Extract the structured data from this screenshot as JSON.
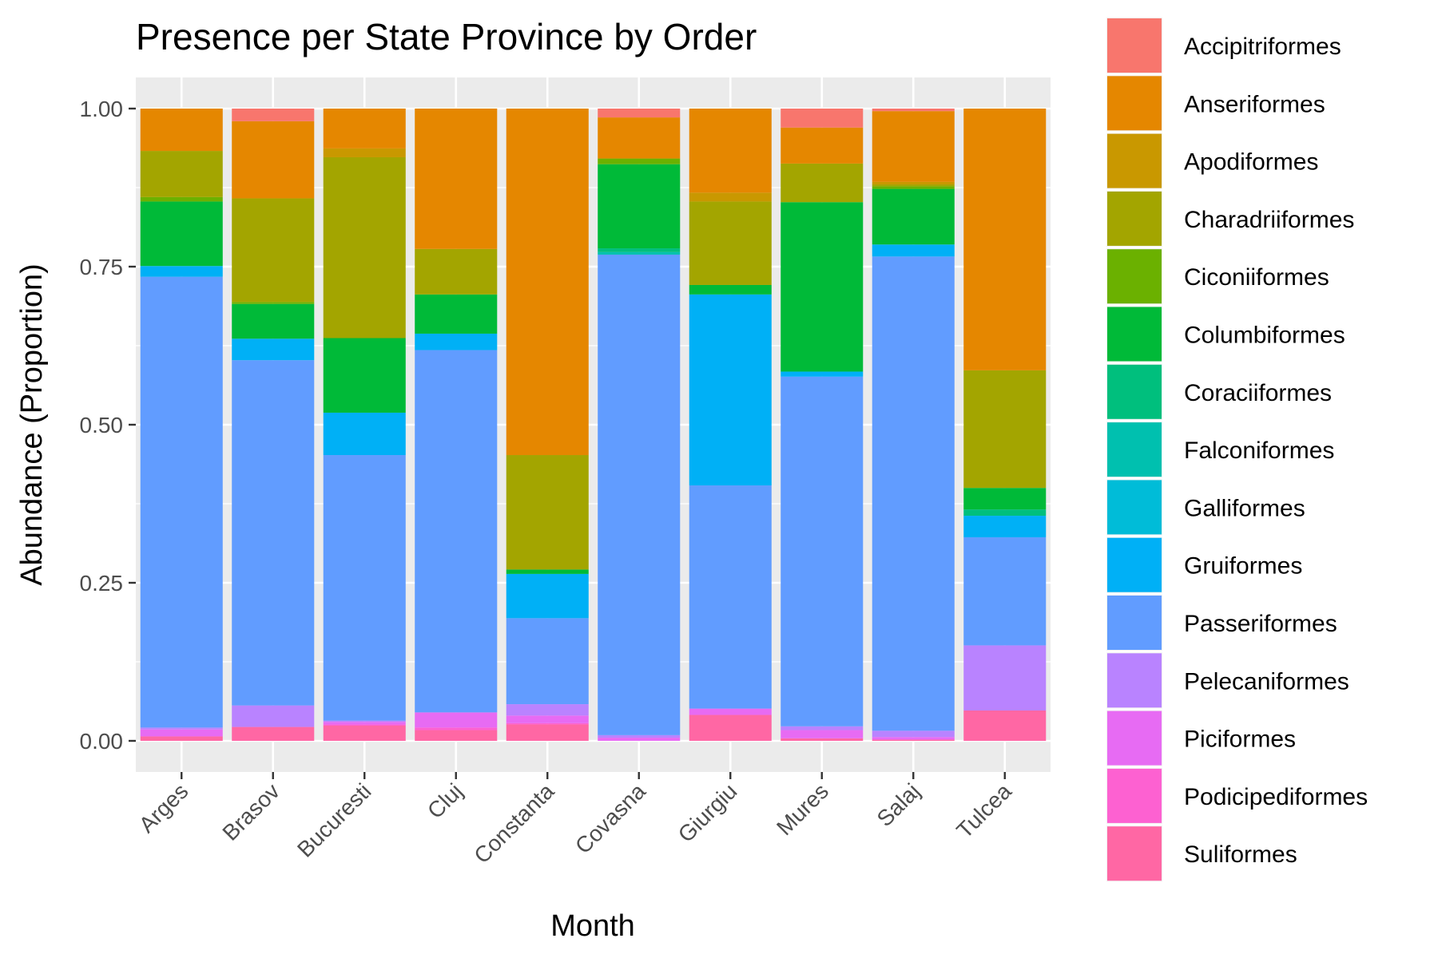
{
  "chart_data": {
    "type": "bar",
    "stacked": true,
    "title": "Presence per State Province by Order",
    "xlabel": "Month",
    "ylabel": "Abundance (Proportion)",
    "ylim": [
      0,
      1
    ],
    "yticks": [
      "0.00",
      "0.25",
      "0.50",
      "0.75",
      "1.00"
    ],
    "grid": true,
    "legend_position": "right",
    "categories": [
      "Arges",
      "Brasov",
      "Bucuresti",
      "Cluj",
      "Constanta",
      "Covasna",
      "Giurgiu",
      "Mures",
      "Salaj",
      "Tulcea"
    ],
    "series": [
      {
        "name": "Accipitriformes",
        "color": "#F8766D",
        "values": [
          0,
          0.02,
          0,
          0,
          0,
          0.014,
          0,
          0.03,
          0.004,
          0
        ]
      },
      {
        "name": "Anseriformes",
        "color": "#E58700",
        "values": [
          0.067,
          0.122,
          0.063,
          0.222,
          0.548,
          0.065,
          0.133,
          0.057,
          0.112,
          0.414
        ]
      },
      {
        "name": "Apodiformes",
        "color": "#C99800",
        "values": [
          0,
          0,
          0.014,
          0,
          0,
          0,
          0.014,
          0,
          0.004,
          0
        ]
      },
      {
        "name": "Charadriiformes",
        "color": "#A3A500",
        "values": [
          0.073,
          0.164,
          0.286,
          0.072,
          0.181,
          0,
          0.132,
          0.061,
          0.003,
          0.186
        ]
      },
      {
        "name": "Ciconiiformes",
        "color": "#6BB100",
        "values": [
          0.007,
          0.003,
          0,
          0,
          0,
          0.009,
          0,
          0,
          0.004,
          0
        ]
      },
      {
        "name": "Columbiformes",
        "color": "#00BA38",
        "values": [
          0.102,
          0.055,
          0.118,
          0.062,
          0.007,
          0.133,
          0.015,
          0.268,
          0.088,
          0.034
        ]
      },
      {
        "name": "Coraciiformes",
        "color": "#00BF7D",
        "values": [
          0,
          0,
          0,
          0,
          0,
          0.006,
          0,
          0,
          0,
          0.01
        ]
      },
      {
        "name": "Falconiformes",
        "color": "#00C0AF",
        "values": [
          0,
          0,
          0,
          0,
          0,
          0.004,
          0,
          0,
          0,
          0
        ]
      },
      {
        "name": "Galliformes",
        "color": "#00BCD8",
        "values": [
          0,
          0,
          0,
          0,
          0,
          0,
          0,
          0,
          0,
          0
        ]
      },
      {
        "name": "Gruiformes",
        "color": "#00B0F6",
        "values": [
          0.017,
          0.034,
          0.067,
          0.026,
          0.07,
          0,
          0.302,
          0.008,
          0.019,
          0.034
        ]
      },
      {
        "name": "Passeriformes",
        "color": "#619CFF",
        "values": [
          0.713,
          0.546,
          0.42,
          0.573,
          0.136,
          0.76,
          0.353,
          0.553,
          0.75,
          0.171
        ]
      },
      {
        "name": "Pelecaniformes",
        "color": "#B983FF",
        "values": [
          0.003,
          0.034,
          0.002,
          0,
          0.018,
          0.004,
          0,
          0.006,
          0.01,
          0.103
        ]
      },
      {
        "name": "Piciformes",
        "color": "#E76BF3",
        "values": [
          0.011,
          0,
          0.004,
          0.024,
          0.012,
          0.005,
          0.01,
          0.013,
          0.004,
          0
        ]
      },
      {
        "name": "Podicipediformes",
        "color": "#FD61D1",
        "values": [
          0,
          0,
          0.002,
          0.004,
          0.002,
          0,
          0,
          0,
          0,
          0
        ]
      },
      {
        "name": "Suliformes",
        "color": "#FF67A4",
        "values": [
          0.007,
          0.022,
          0.024,
          0.017,
          0.026,
          0,
          0.041,
          0.004,
          0.002,
          0.048
        ]
      }
    ]
  }
}
